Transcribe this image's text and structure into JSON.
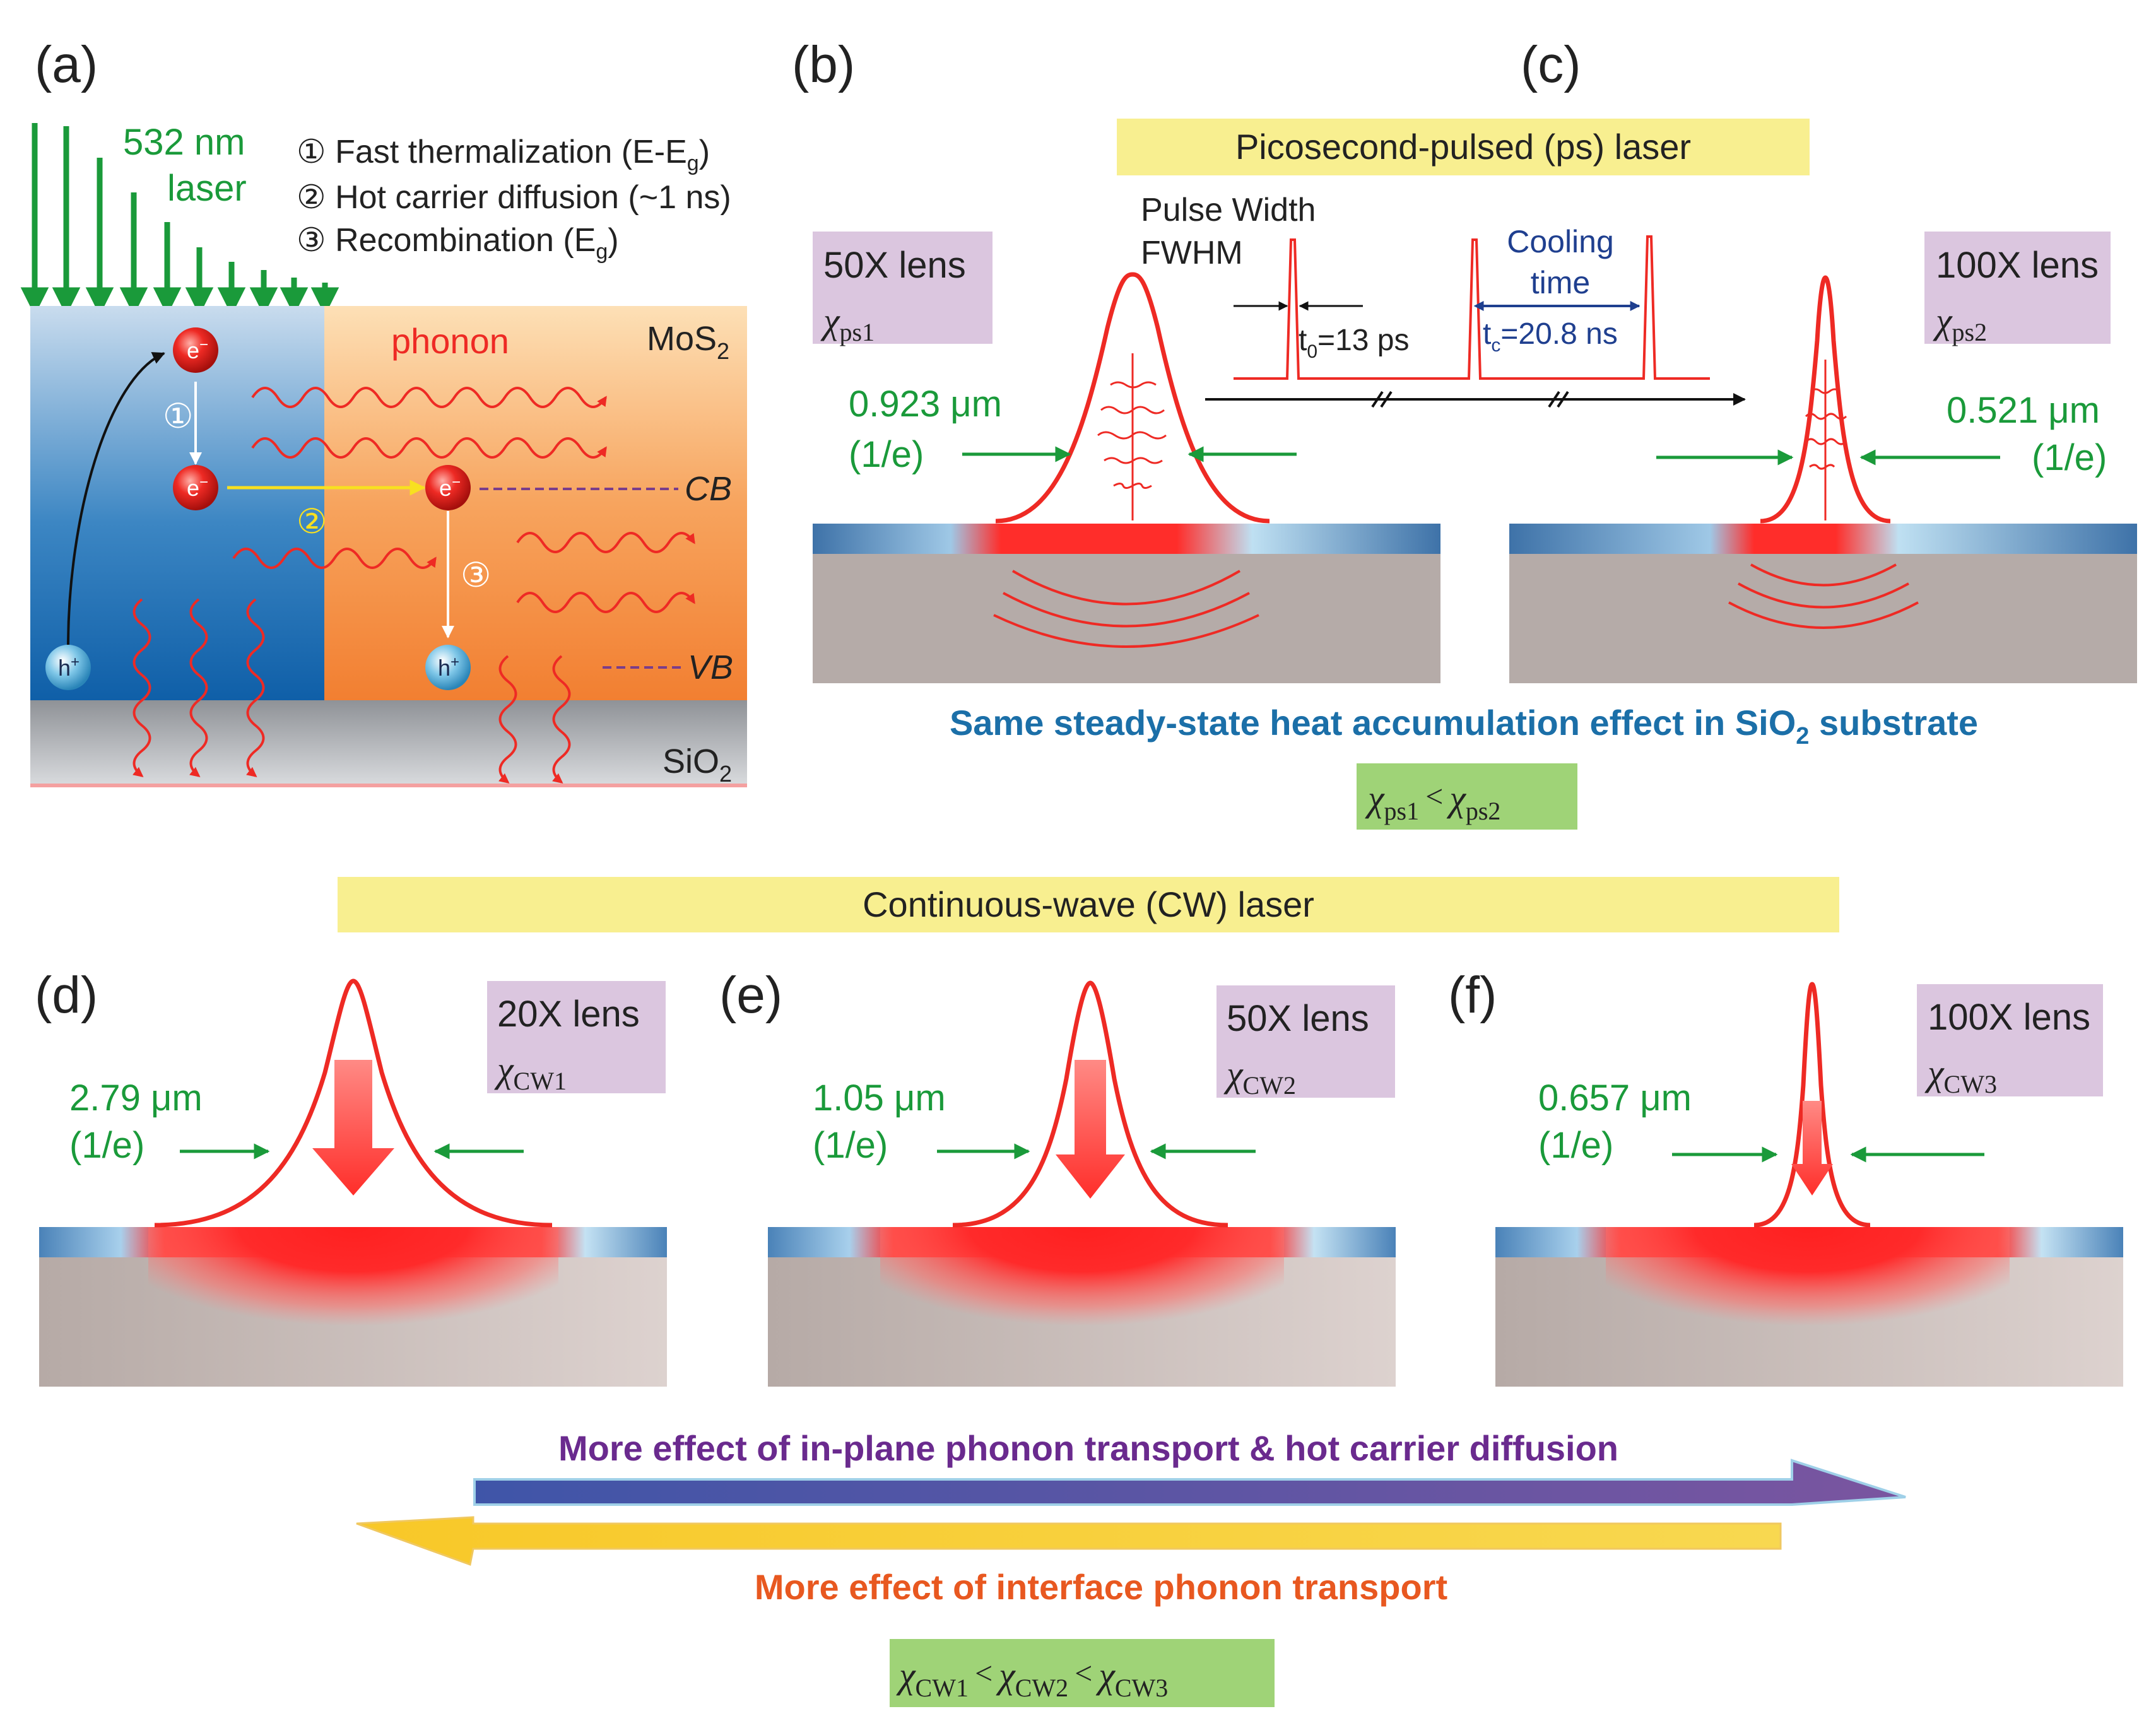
{
  "panels": {
    "a": {
      "tag": "(a)",
      "laser_line1": "532 nm",
      "laser_line2": "laser",
      "steps": [
        "① Fast thermalization (E-E",
        "② Hot carrier diffusion (~1 ns)",
        "③ Recombination (E"
      ],
      "step1_tail": ")",
      "step3_tail": ")",
      "eg_sub": "g",
      "phonon": "phonon",
      "mos2": "MoS",
      "sub2": "2",
      "cb": "CB",
      "vb": "VB",
      "sio2": "SiO",
      "electron": "e",
      "electron_sup": "−",
      "hole": "h",
      "hole_sup": "+",
      "mark1": "①",
      "mark2": "②",
      "mark3": "③"
    },
    "b": {
      "tag": "(b)",
      "lens": "50X lens",
      "chi": "χ",
      "chi_sub": "ps1",
      "spot": "0.923 μm",
      "spot_unit": "(1/e)"
    },
    "c": {
      "tag": "(c)",
      "lens": "100X lens",
      "chi": "χ",
      "chi_sub": "ps2",
      "spot": "0.521 μm",
      "spot_unit": "(1/e)"
    },
    "d": {
      "tag": "(d)",
      "lens": "20X lens",
      "chi": "χ",
      "chi_sub": "CW1",
      "spot": "2.79 μm",
      "spot_unit": "(1/e)"
    },
    "e": {
      "tag": "(e)",
      "lens": "50X lens",
      "chi": "χ",
      "chi_sub": "CW2",
      "spot": "1.05 μm",
      "spot_unit": "(1/e)"
    },
    "f": {
      "tag": "(f)",
      "lens": "100X lens",
      "chi": "χ",
      "chi_sub": "CW3",
      "spot": "0.657 μm",
      "spot_unit": "(1/e)"
    }
  },
  "ps": {
    "banner": "Picosecond-pulsed (ps) laser",
    "pulse_width_1": "Pulse Width",
    "pulse_width_2": "FWHM",
    "t0": "t",
    "t0_sub": "0",
    "t0_val": "=13 ps",
    "cooling_1": "Cooling",
    "cooling_2": "time",
    "tc": "t",
    "tc_sub": "c",
    "tc_val": "=20.8 ns",
    "steady_a": "Same steady-state heat accumulation effect in SiO",
    "steady_sub": "2",
    "steady_b": " substrate",
    "relation": {
      "chi": "χ",
      "lhs": "ps1",
      "op": "<",
      "rhs": "ps2"
    }
  },
  "cw": {
    "banner": "Continuous-wave (CW) laser",
    "inplane": "More effect of in-plane phonon transport & hot carrier diffusion",
    "interface": "More effect of interface phonon transport",
    "relation": {
      "chi": "χ",
      "a": "CW1",
      "op": "<",
      "b": "CW2",
      "c": "CW3"
    }
  },
  "colors": {
    "green": "#1a9a3a",
    "red": "#ee2a24",
    "blue_text": "#1b6fa8",
    "purple_text": "#6a2a8e",
    "orange_text": "#e85820",
    "banner": "#f8ef90",
    "lens_box": "#dbc6df",
    "rel_box": "#9fd377"
  }
}
